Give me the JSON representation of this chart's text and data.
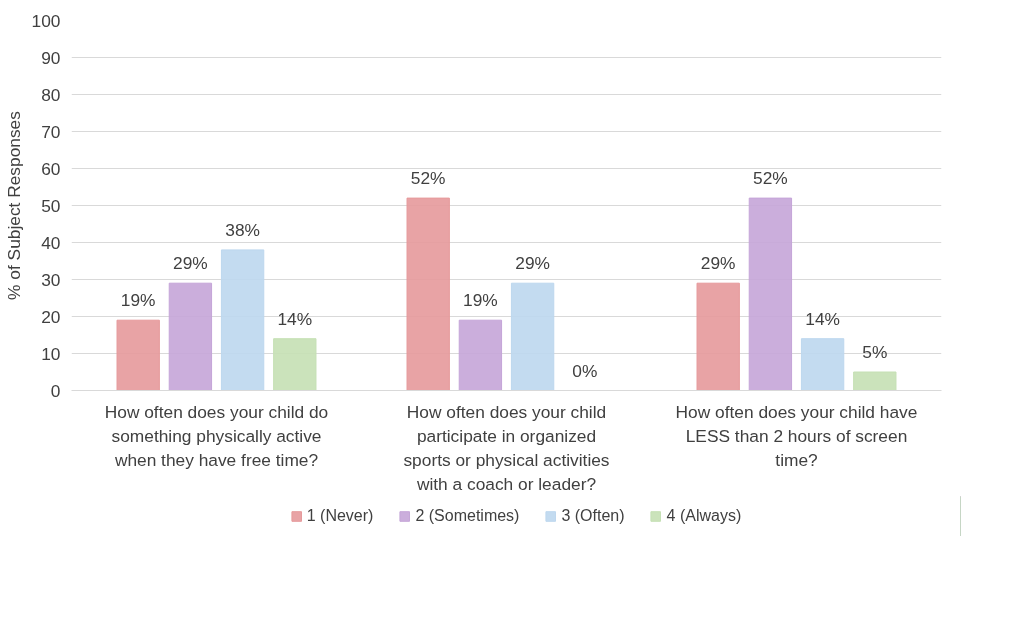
{
  "chart_data": {
    "type": "bar",
    "ylabel": "% of Subject Responses",
    "categories": [
      "How often does your child do something physically active when they have free time?",
      "How often does your child participate in organized sports or physical activities with a coach or leader?",
      "How often does your child have LESS than 2 hours of screen time?"
    ],
    "series": [
      {
        "name": "1 (Never)",
        "color": "#e6999b",
        "values": [
          19,
          52,
          29
        ],
        "value_labels": [
          "19%",
          "52%",
          "29%"
        ]
      },
      {
        "name": "2 (Sometimes)",
        "color": "#c5a5d8",
        "values": [
          29,
          19,
          52
        ],
        "value_labels": [
          "29%",
          "19%",
          "52%"
        ]
      },
      {
        "name": "3 (Often)",
        "color": "#bdd7ee",
        "values": [
          38,
          29,
          14
        ],
        "value_labels": [
          "38%",
          "29%",
          "14%"
        ]
      },
      {
        "name": "4 (Always)",
        "color": "#c5e0b4",
        "values": [
          14,
          0,
          5
        ],
        "value_labels": [
          "14%",
          "0%",
          "5%"
        ]
      }
    ],
    "ylim": [
      0,
      100
    ],
    "yticks": [
      0,
      10,
      20,
      30,
      40,
      50,
      60,
      70,
      80,
      90,
      100
    ],
    "grid": "y",
    "legend": "bottom"
  }
}
